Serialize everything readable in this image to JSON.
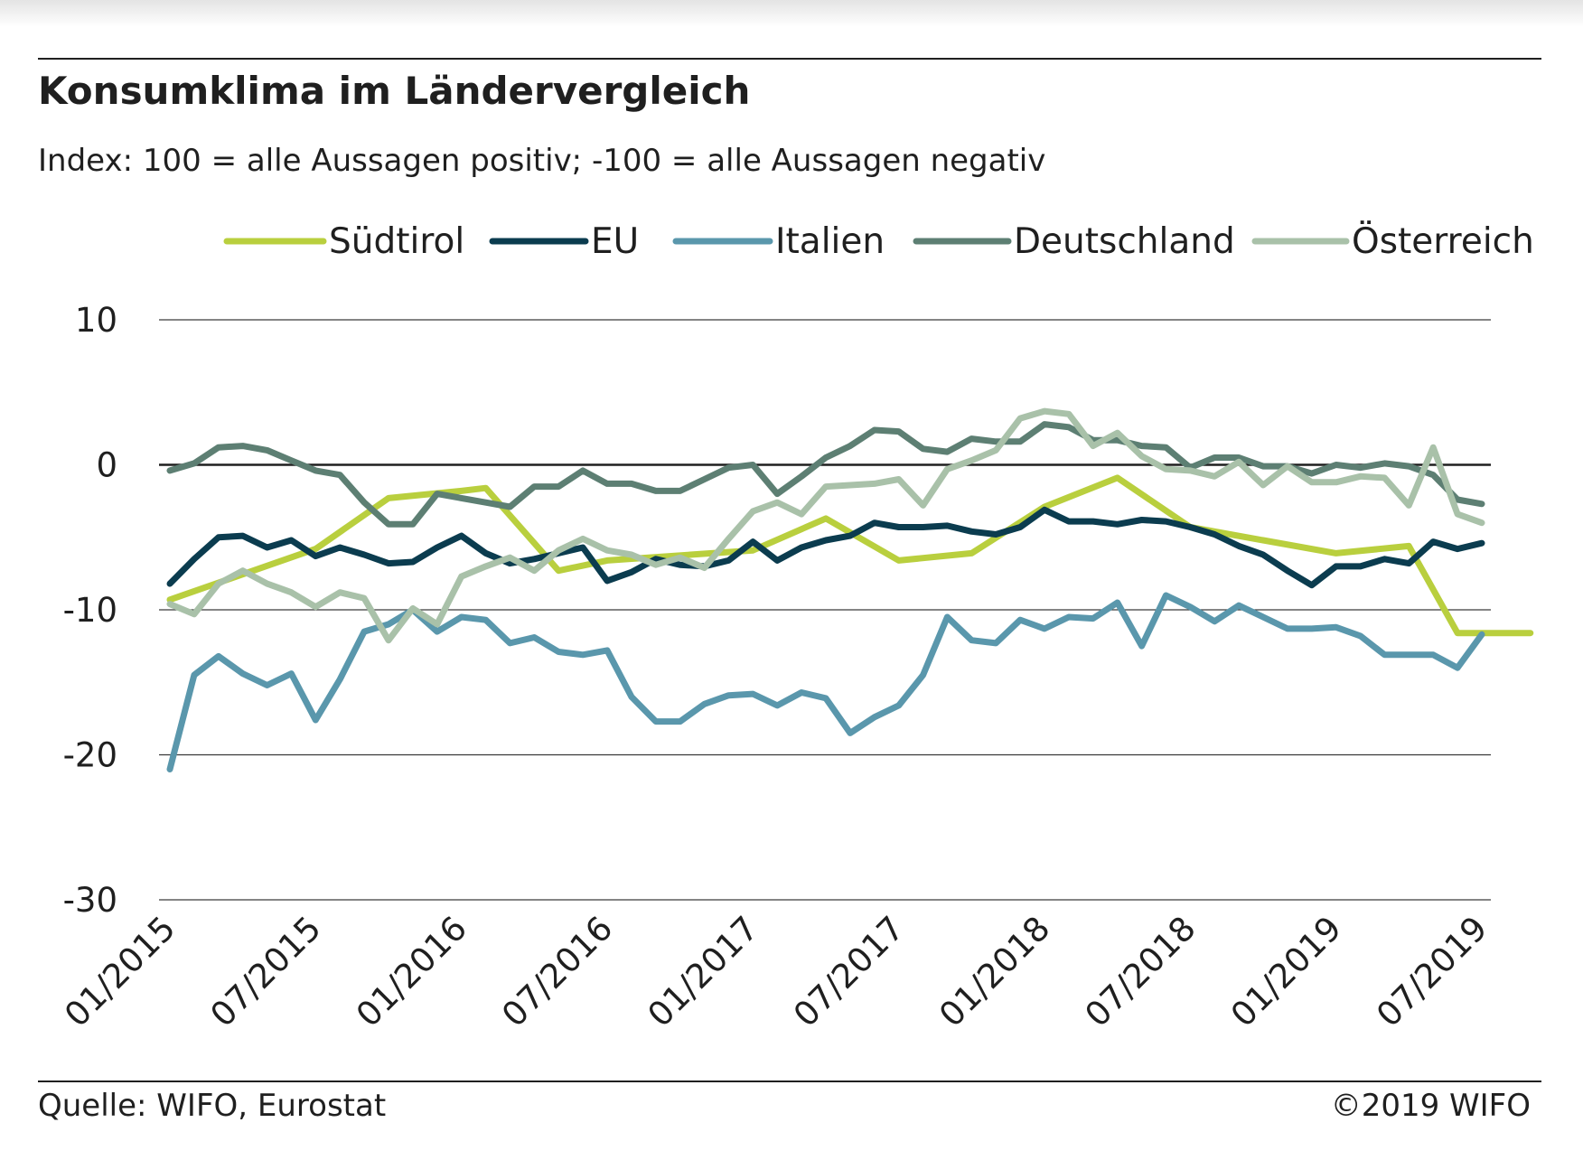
{
  "title": "Konsumklima im Ländervergleich",
  "subtitle": "Index: 100 = alle Aussagen positiv; -100 =  alle Aussagen negativ",
  "source": "Quelle: WIFO, Eurostat",
  "copyright": "©2019 WIFO",
  "chart_data": {
    "type": "line",
    "x_start": "01/2015",
    "x_end": "07/2019",
    "x_ticks": [
      "01/2015",
      "07/2015",
      "01/2016",
      "07/2016",
      "01/2017",
      "07/2017",
      "01/2018",
      "07/2018",
      "01/2019",
      "07/2019"
    ],
    "ylim": [
      -30,
      10
    ],
    "y_ticks": [
      10,
      0,
      -10,
      -20,
      -30
    ],
    "grid": "horizontal",
    "legend_position": "top",
    "series": [
      {
        "name": "Südtirol",
        "color": "#b9cf3e",
        "points": [
          [
            "01/2015",
            -9.3
          ],
          [
            "07/2015",
            -5.8
          ],
          [
            "10/2015",
            -2.3
          ],
          [
            "01/2016",
            -1.8
          ],
          [
            "02/2016",
            -1.6
          ],
          [
            "05/2016",
            -7.3
          ],
          [
            "07/2016",
            -6.6
          ],
          [
            "01/2017",
            -5.9
          ],
          [
            "04/2017",
            -3.7
          ],
          [
            "07/2017",
            -6.6
          ],
          [
            "10/2017",
            -6.1
          ],
          [
            "01/2018",
            -2.9
          ],
          [
            "04/2018",
            -0.9
          ],
          [
            "07/2018",
            -4.3
          ],
          [
            "10/2018",
            -5.2
          ],
          [
            "01/2019",
            -6.1
          ],
          [
            "04/2019",
            -5.6
          ],
          [
            "06/2019",
            -11.6
          ],
          [
            "09/2019",
            -11.6
          ]
        ]
      },
      {
        "name": "EU",
        "color": "#0b3c4f",
        "values": [
          -8.2,
          -6.5,
          -5,
          -4.9,
          -5.7,
          -5.2,
          -6.3,
          -5.7,
          -6.2,
          -6.8,
          -6.7,
          -5.7,
          -4.9,
          -6.1,
          -6.8,
          -6.5,
          -6.1,
          -5.7,
          -8,
          -7.4,
          -6.5,
          -6.9,
          -7,
          -6.6,
          -5.3,
          -6.6,
          -5.7,
          -5.2,
          -4.9,
          -4,
          -4.3,
          -4.3,
          -4.2,
          -4.6,
          -4.8,
          -4.3,
          -3.1,
          -3.9,
          -3.9,
          -4.1,
          -3.8,
          -3.9,
          -4.3,
          -4.8,
          -5.6,
          -6.2,
          -7.3,
          -8.3,
          -7,
          -7,
          -6.5,
          -6.8,
          -5.3,
          -5.8,
          -5.4
        ]
      },
      {
        "name": "Italien",
        "color": "#5a97ac",
        "values": [
          -21,
          -14.5,
          -13.2,
          -14.4,
          -15.2,
          -14.4,
          -17.6,
          -14.8,
          -11.5,
          -11,
          -10,
          -11.5,
          -10.5,
          -10.7,
          -12.3,
          -11.9,
          -12.9,
          -13.1,
          -12.8,
          -16,
          -17.7,
          -17.7,
          -16.5,
          -15.9,
          -15.8,
          -16.6,
          -15.7,
          -16.1,
          -18.5,
          -17.4,
          -16.6,
          -14.5,
          -10.5,
          -12.1,
          -12.3,
          -10.7,
          -11.3,
          -10.5,
          -10.6,
          -9.5,
          -12.5,
          -9,
          -9.8,
          -10.8,
          -9.7,
          -10.5,
          -11.3,
          -11.3,
          -11.2,
          -11.8,
          -13.1,
          -13.1,
          -13.1,
          -14,
          -11.7
        ]
      },
      {
        "name": "Deutschland",
        "color": "#5d7f73",
        "values": [
          -0.4,
          0.1,
          1.2,
          1.3,
          1,
          0.3,
          -0.4,
          -0.7,
          -2.6,
          -4.1,
          -4.1,
          -2,
          -2.3,
          -2.6,
          -2.9,
          -1.5,
          -1.5,
          -0.4,
          -1.3,
          -1.3,
          -1.8,
          -1.8,
          -1,
          -0.2,
          0,
          -2,
          -0.8,
          0.5,
          1.3,
          2.4,
          2.3,
          1.1,
          0.9,
          1.8,
          1.6,
          1.6,
          2.8,
          2.6,
          1.7,
          1.7,
          1.3,
          1.2,
          -0.2,
          0.5,
          0.5,
          -0.1,
          -0.1,
          -0.6,
          0,
          -0.2,
          0.1,
          -0.1,
          -0.7,
          -2.4,
          -2.7
        ]
      },
      {
        "name": "Österreich",
        "color": "#a9c1a9",
        "values": [
          -9.6,
          -10.3,
          -8.2,
          -7.3,
          -8.2,
          -8.8,
          -9.8,
          -8.8,
          -9.2,
          -12.1,
          -9.9,
          -11,
          -7.7,
          -7,
          -6.4,
          -7.3,
          -5.9,
          -5.1,
          -5.9,
          -6.2,
          -6.9,
          -6.4,
          -7.1,
          -5.1,
          -3.2,
          -2.6,
          -3.4,
          -1.5,
          -1.4,
          -1.3,
          -1,
          -2.8,
          -0.3,
          0.3,
          1,
          3.2,
          3.7,
          3.5,
          1.3,
          2.2,
          0.6,
          -0.3,
          -0.4,
          -0.8,
          0.2,
          -1.4,
          -0.1,
          -1.2,
          -1.2,
          -0.8,
          -0.9,
          -2.8,
          1.2,
          -3.4,
          -4
        ]
      }
    ]
  }
}
